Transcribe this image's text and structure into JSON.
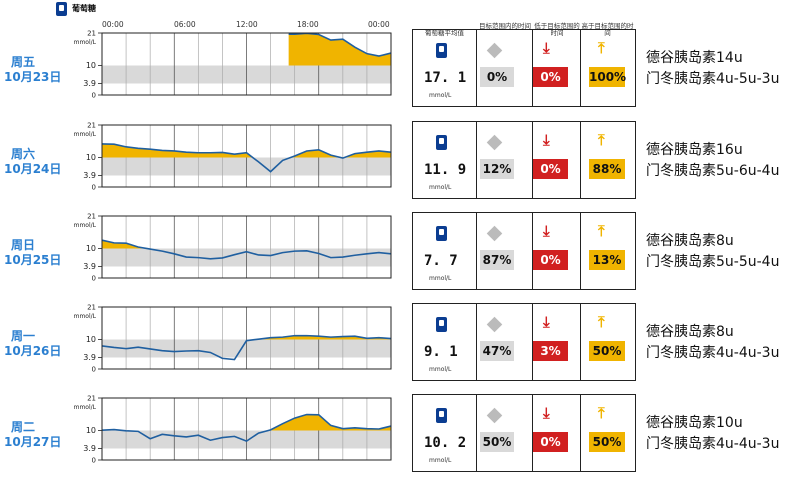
{
  "legend": {
    "label": "葡萄糖",
    "icon": "glucose-meter-icon"
  },
  "time_labels": [
    "00:00",
    "06:00",
    "12:00",
    "18:00",
    "00:00"
  ],
  "y_unit": "mmol/L",
  "stat_headers": {
    "avg": "葡萄糖平均值",
    "in_range": "目标范围内的时间",
    "below": "低于目标范围的时间",
    "above": "高于目标范围的时间"
  },
  "avg_unit": "mmol/L",
  "colors": {
    "above": "#f0b400",
    "target_band": "#d9d9d9",
    "line": "#1f5fa0",
    "day_label": "#2b7fd0",
    "low": "#d12020"
  },
  "days": [
    {
      "weekday": "周五",
      "date": "10月23日",
      "avg": "17. 1",
      "in_range": "0%",
      "below": "0%",
      "above": "100%",
      "note1": "德谷胰岛素14u",
      "note2": "门冬胰岛素4u-5u-3u"
    },
    {
      "weekday": "周六",
      "date": "10月24日",
      "avg": "11. 9",
      "in_range": "12%",
      "below": "0%",
      "above": "88%",
      "note1": "德谷胰岛素16u",
      "note2": "门冬胰岛素5u-6u-4u"
    },
    {
      "weekday": "周日",
      "date": "10月25日",
      "avg": "7. 7",
      "in_range": "87%",
      "below": "0%",
      "above": "13%",
      "note1": "德谷胰岛素8u",
      "note2": "门冬胰岛素5u-5u-4u"
    },
    {
      "weekday": "周一",
      "date": "10月26日",
      "avg": "9. 1",
      "in_range": "47%",
      "below": "3%",
      "above": "50%",
      "note1": "德谷胰岛素8u",
      "note2": "门冬胰岛素4u-4u-3u"
    },
    {
      "weekday": "周二",
      "date": "10月27日",
      "avg": "10. 2",
      "in_range": "50%",
      "below": "0%",
      "above": "50%",
      "note1": "德谷胰岛素10u",
      "note2": "门冬胰岛素4u-4u-3u"
    }
  ],
  "chart_data": [
    {
      "type": "line",
      "title": "周五 10月23日",
      "ylabel": "mmol/L",
      "ylim": [
        0,
        21
      ],
      "yticks": [
        "21",
        "10",
        "3.9",
        "0"
      ],
      "target_range": [
        3.9,
        10
      ],
      "x_hours": [
        15.5,
        16,
        17,
        18,
        19,
        20,
        21,
        22,
        23,
        24
      ],
      "values": [
        20.6,
        20.6,
        20.9,
        20.5,
        18.6,
        18.9,
        16.2,
        14.0,
        13.2,
        14.2
      ]
    },
    {
      "type": "line",
      "title": "周六 10月24日",
      "ylabel": "mmol/L",
      "ylim": [
        0,
        21
      ],
      "yticks": [
        "21",
        "10",
        "3.9",
        "0"
      ],
      "target_range": [
        3.9,
        10
      ],
      "x_hours": [
        0,
        1,
        2,
        3,
        4,
        5,
        6,
        7,
        8,
        9,
        10,
        11,
        12,
        13,
        14,
        15,
        16,
        17,
        18,
        19,
        20,
        21,
        22,
        23,
        24
      ],
      "values": [
        14.6,
        14.5,
        13.6,
        13.1,
        12.8,
        12.4,
        12.2,
        11.8,
        11.6,
        11.6,
        11.7,
        11.1,
        11.6,
        8.5,
        5.2,
        9.0,
        10.5,
        12.2,
        12.6,
        10.8,
        9.8,
        11.3,
        11.8,
        12.2,
        11.8
      ]
    },
    {
      "type": "line",
      "title": "周日 10月25日",
      "ylabel": "mmol/L",
      "ylim": [
        0,
        21
      ],
      "yticks": [
        "21",
        "10",
        "3.9",
        "0"
      ],
      "target_range": [
        3.9,
        10
      ],
      "x_hours": [
        0,
        1,
        2,
        3,
        4,
        5,
        6,
        7,
        8,
        9,
        10,
        11,
        12,
        13,
        14,
        15,
        16,
        17,
        18,
        19,
        20,
        21,
        22,
        23,
        24
      ],
      "values": [
        12.8,
        11.9,
        11.8,
        10.5,
        9.8,
        9.1,
        8.2,
        7.1,
        6.9,
        6.5,
        6.8,
        7.9,
        8.9,
        7.8,
        7.6,
        8.6,
        9.1,
        9.2,
        8.3,
        6.9,
        7.1,
        7.7,
        8.2,
        8.6,
        8.2
      ]
    },
    {
      "type": "line",
      "title": "周一 10月26日",
      "ylabel": "mmol/L",
      "ylim": [
        0,
        21
      ],
      "yticks": [
        "21",
        "10",
        "3.9",
        "0"
      ],
      "target_range": [
        3.9,
        10
      ],
      "x_hours": [
        0,
        1,
        2,
        3,
        4,
        5,
        6,
        7,
        8,
        9,
        10,
        11,
        12,
        13,
        14,
        15,
        16,
        17,
        18,
        19,
        20,
        21,
        22,
        23,
        24
      ],
      "values": [
        7.8,
        7.3,
        6.9,
        7.4,
        6.8,
        6.2,
        5.9,
        6.1,
        6.2,
        5.6,
        3.6,
        3.2,
        9.6,
        10.1,
        10.6,
        10.8,
        11.3,
        11.3,
        11.1,
        10.8,
        11.0,
        11.1,
        10.4,
        10.6,
        10.3
      ]
    },
    {
      "type": "line",
      "title": "周二 10月27日",
      "ylabel": "mmol/L",
      "ylim": [
        0,
        21
      ],
      "yticks": [
        "21",
        "10",
        "3.9",
        "0"
      ],
      "target_range": [
        3.9,
        10
      ],
      "x_hours": [
        0,
        1,
        2,
        3,
        4,
        5,
        6,
        7,
        8,
        9,
        10,
        11,
        12,
        13,
        14,
        15,
        16,
        17,
        18,
        19,
        20,
        21,
        22,
        23,
        24
      ],
      "values": [
        10.1,
        10.3,
        9.9,
        9.7,
        7.2,
        8.7,
        8.2,
        7.8,
        8.4,
        6.7,
        7.6,
        8.0,
        6.4,
        9.1,
        10.2,
        12.3,
        14.2,
        15.4,
        15.3,
        11.7,
        10.6,
        10.9,
        10.6,
        10.5,
        11.5
      ]
    }
  ]
}
